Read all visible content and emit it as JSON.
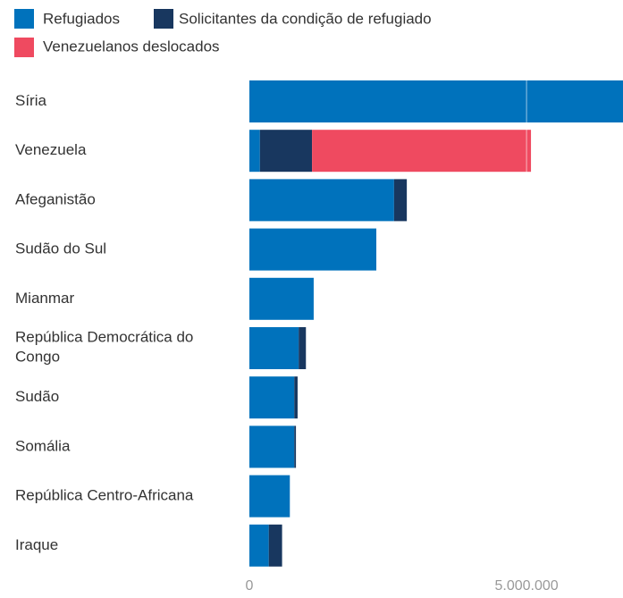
{
  "chart_data": {
    "type": "stacked-bar-horizontal",
    "categories": [
      "Síria",
      "Venezuela",
      "Afeganistão",
      "Sudão do Sul",
      "Mianmar",
      "República Democrática do Congo",
      "Sudão",
      "Somália",
      "República Centro-Africana",
      "Iraque"
    ],
    "series": [
      {
        "name": "Refugiados",
        "color": "#0072bc",
        "values": [
          6740000,
          190000,
          2610000,
          2290000,
          1160000,
          890000,
          810000,
          810000,
          730000,
          350000
        ]
      },
      {
        "name": "Solicitantes da condição de refugiado",
        "color": "#18375f",
        "values": [
          0,
          940000,
          230000,
          0,
          0,
          130000,
          60000,
          30000,
          0,
          240000
        ]
      },
      {
        "name": "Venezuelanos deslocados",
        "color": "#ef4a60",
        "values": [
          0,
          3950000,
          0,
          0,
          0,
          0,
          0,
          0,
          0,
          0
        ]
      }
    ],
    "xlim": [
      0,
      6740000
    ],
    "xticks": [
      0,
      {
        "value": 5000000,
        "label": "5.000.000"
      }
    ],
    "grid": true
  }
}
